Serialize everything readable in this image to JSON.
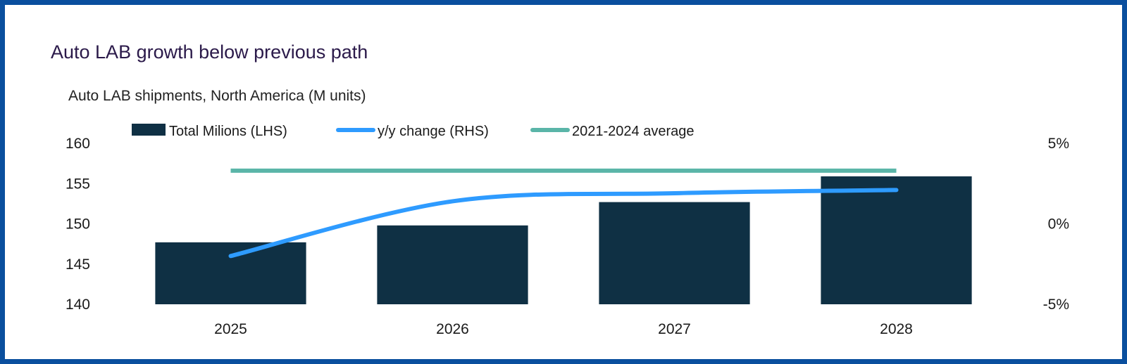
{
  "title": "Auto LAB growth below previous path",
  "subtitle": "Auto LAB shipments, North America (M units)",
  "colors": {
    "frame": "#0a4f9e",
    "bars": "#0f3044",
    "yoy": "#2e9bff",
    "avg": "#5ab5a8",
    "title": "#2b1a4a"
  },
  "chart_data": {
    "type": "bar",
    "categories": [
      "2025",
      "2026",
      "2027",
      "2028"
    ],
    "series": [
      {
        "name": "Total Milions (LHS)",
        "type": "bar",
        "axis": "left",
        "values": [
          147.7,
          149.8,
          152.7,
          155.9
        ]
      },
      {
        "name": "y/y change (RHS)",
        "type": "line",
        "axis": "right",
        "values": [
          -2.0,
          1.4,
          1.9,
          2.1
        ]
      },
      {
        "name": "2021-2024 average",
        "type": "line",
        "axis": "right",
        "values": [
          3.3,
          3.3,
          3.3,
          3.3
        ]
      }
    ],
    "left_axis": {
      "ylim": [
        140,
        160
      ],
      "ticks": [
        "140",
        "145",
        "150",
        "155",
        "160"
      ]
    },
    "right_axis": {
      "ylim": [
        -5,
        5
      ],
      "ticks": [
        "-5%",
        "0%",
        "5%"
      ]
    },
    "legend_position": "top",
    "grid": false
  }
}
